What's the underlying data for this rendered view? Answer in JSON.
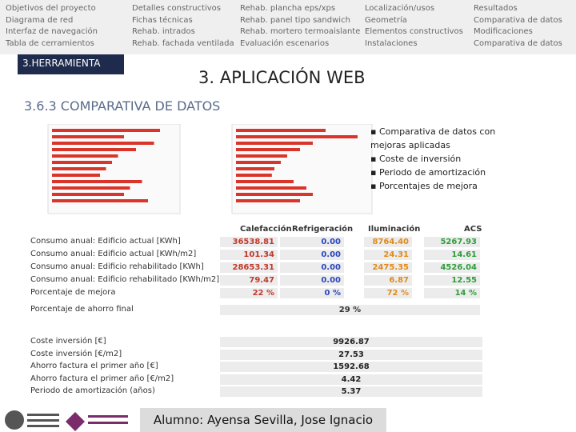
{
  "nav": [
    [
      "Objetivos del proyecto",
      "Diagrama de red",
      "Interfaz de navegación",
      "Tabla de cerramientos"
    ],
    [
      "Detalles constructivos",
      "Fichas técnicas",
      "Rehab. intrados",
      "Rehab. fachada ventilada"
    ],
    [
      "Rehab. plancha eps/xps",
      "Rehab. panel tipo sandwich",
      "Rehab. mortero termoaislante",
      "Evaluación escenarios"
    ],
    [
      "Localización/usos",
      "Geometría",
      "Elementos constructivos",
      "Instalaciones"
    ],
    [
      "Resultados",
      "Comparativa de datos",
      "Modificaciones",
      "Comparativa de datos"
    ]
  ],
  "section_tab": "3.HERRAMIENTA",
  "title": "3. APLICACIÓN WEB",
  "subtitle": "3.6.3 COMPARATIVA DE DATOS",
  "bullets": [
    "Comparativa de datos con mejoras aplicadas",
    "Coste de inversión",
    "Periodo de amortización",
    "Porcentajes de mejora"
  ],
  "mini_charts": [
    {
      "values": [
        90,
        60,
        85,
        70,
        55,
        50,
        45,
        40,
        75,
        65,
        60,
        80
      ]
    },
    {
      "values": [
        70,
        95,
        60,
        50,
        40,
        35,
        30,
        28,
        45,
        55,
        60,
        50
      ]
    }
  ],
  "table": {
    "columns": [
      "Calefacción",
      "Refrigeración",
      "Iluminación",
      "ACS"
    ],
    "rows": [
      {
        "label": "Consumo anual: Edificio actual [KWh]",
        "cells": [
          "36538.81",
          "0.00",
          "8764.40",
          "5267.93"
        ]
      },
      {
        "label": "Consumo anual: Edificio actual [KWh/m2]",
        "cells": [
          "101.34",
          "0.00",
          "24.31",
          "14.61"
        ]
      },
      {
        "label": "Consumo anual: Edificio rehabilitado [KWh]",
        "cells": [
          "28653.31",
          "0.00",
          "2475.35",
          "4526.04"
        ]
      },
      {
        "label": "Consumo anual: Edificio rehabilitado [KWh/m2]",
        "cells": [
          "79.47",
          "0.00",
          "6.87",
          "12.55"
        ]
      },
      {
        "label": "Porcentaje de mejora",
        "cells": [
          "22 %",
          "0 %",
          "72 %",
          "14 %"
        ]
      }
    ],
    "final": {
      "label": "Porcentaje de ahorro final",
      "value": "29 %"
    }
  },
  "investment": [
    {
      "label": "Coste inversión [€]",
      "value": "9926.87"
    },
    {
      "label": "Coste inversión [€/m2]",
      "value": "27.53"
    },
    {
      "label": "Ahorro factura el primer año [€]",
      "value": "1592.68"
    },
    {
      "label": "Ahorro factura el primer año [€/m2]",
      "value": "4.42"
    },
    {
      "label": "Periodo de amortización (años)",
      "value": "5.37"
    }
  ],
  "author": "Alumno: Ayensa Sevilla, Jose Ignacio"
}
